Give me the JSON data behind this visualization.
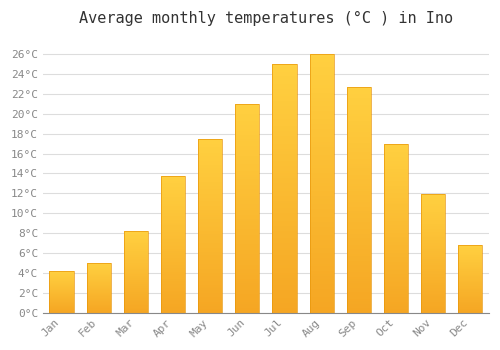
{
  "title": "Average monthly temperatures (°C ) in Ino",
  "months": [
    "Jan",
    "Feb",
    "Mar",
    "Apr",
    "May",
    "Jun",
    "Jul",
    "Aug",
    "Sep",
    "Oct",
    "Nov",
    "Dec"
  ],
  "temperatures": [
    4.2,
    5.0,
    8.2,
    13.7,
    17.5,
    21.0,
    25.0,
    26.0,
    22.7,
    17.0,
    11.9,
    6.8
  ],
  "bar_color_bottom": "#F5A623",
  "bar_color_top": "#FFD040",
  "bar_edge_color": "#E8960A",
  "background_color": "#FFFFFF",
  "grid_color": "#DDDDDD",
  "ylim": [
    0,
    28
  ],
  "yticks": [
    0,
    2,
    4,
    6,
    8,
    10,
    12,
    14,
    16,
    18,
    20,
    22,
    24,
    26
  ],
  "title_fontsize": 11,
  "tick_fontsize": 8,
  "tick_label_color": "#888888",
  "font_family": "monospace"
}
